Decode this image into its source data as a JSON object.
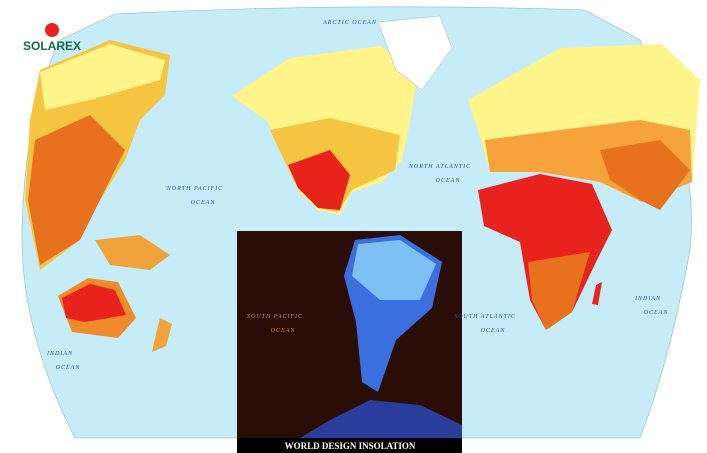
{
  "logo": {
    "text": "SOLAREX"
  },
  "title": "WORLD DESIGN INSOLATION",
  "ocean_labels": [
    {
      "lines": [
        "ARCTIC OCEAN"
      ]
    },
    {
      "lines": [
        "NORTH PACIFIC",
        "OCEAN"
      ]
    },
    {
      "lines": [
        "NORTH ATLANTIC",
        "OCEAN"
      ]
    },
    {
      "lines": [
        "SOUTH PACIFIC",
        "OCEAN"
      ]
    },
    {
      "lines": [
        "SOUTH ATLANTIC",
        "OCEAN"
      ]
    },
    {
      "lines": [
        "INDIAN",
        "OCEAN"
      ]
    },
    {
      "lines": [
        "INDIAN",
        "OCEAN"
      ]
    }
  ]
}
